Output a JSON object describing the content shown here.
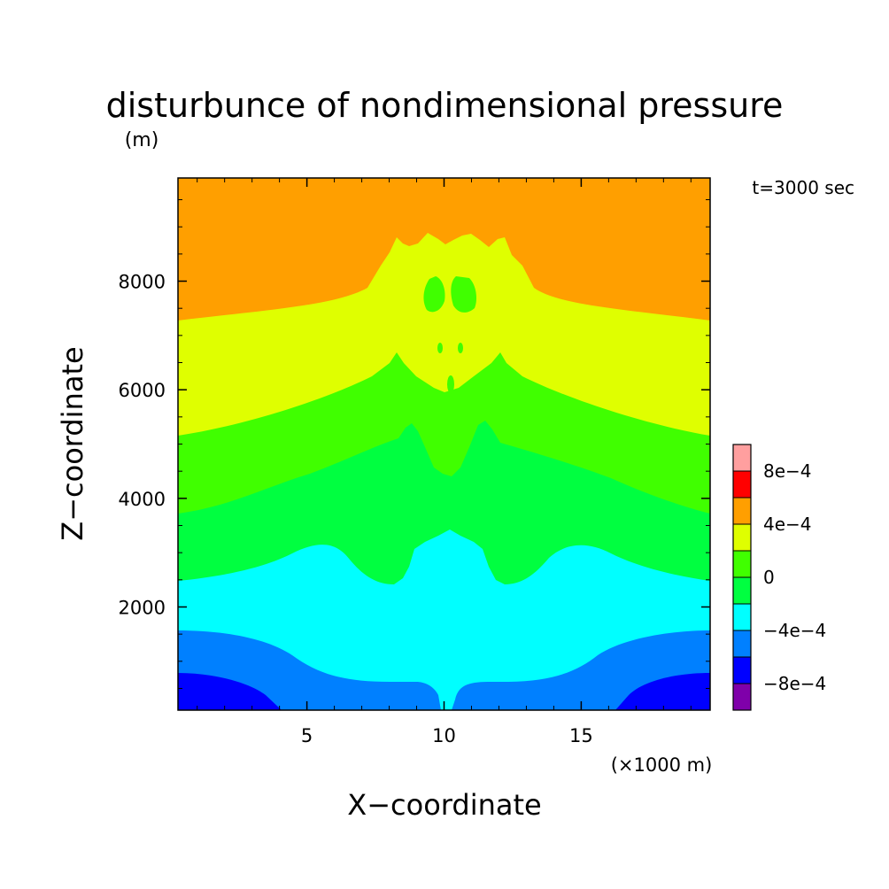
{
  "chart_data": {
    "type": "contour",
    "title": "disturbunce of nondimensional pressure",
    "time_label": "t=3000 sec",
    "xlabel": "X−coordinate",
    "ylabel": "Z−coordinate",
    "x_unit": "(×1000 m)",
    "y_unit": "(m)",
    "xlim": [
      0.3,
      19.7
    ],
    "ylim": [
      100,
      9900
    ],
    "x_ticks": [
      {
        "value": 5,
        "label": "5"
      },
      {
        "value": 10,
        "label": "10"
      },
      {
        "value": 15,
        "label": "15"
      }
    ],
    "y_ticks": [
      {
        "value": 2000,
        "label": "2000"
      },
      {
        "value": 4000,
        "label": "4000"
      },
      {
        "value": 6000,
        "label": "6000"
      },
      {
        "value": 8000,
        "label": "8000"
      }
    ],
    "levels": [
      {
        "range": "< -8e-4",
        "color": "#7f00aa"
      },
      {
        "range": "-8e-4 to -6e-4",
        "color": "#0000ff"
      },
      {
        "range": "-6e-4 to -4e-4",
        "color": "#0080ff"
      },
      {
        "range": "-4e-4 to -2e-4",
        "color": "#00ffff"
      },
      {
        "range": "-2e-4 to 0",
        "color": "#00ff40"
      },
      {
        "range": "0 to 2e-4",
        "color": "#40ff00"
      },
      {
        "range": "2e-4 to 4e-4",
        "color": "#dfff00"
      },
      {
        "range": "4e-4 to 6e-4",
        "color": "#ff9f00"
      },
      {
        "range": "6e-4 to 8e-4",
        "color": "#ff0000"
      },
      {
        "range": "> 8e-4",
        "color": "#ff9f9f"
      }
    ],
    "colorbar_labels": [
      {
        "value": "8e-4",
        "label": "8e−4"
      },
      {
        "value": "4e-4",
        "label": "4e−4"
      },
      {
        "value": "0",
        "label": "0"
      },
      {
        "value": "-4e-4",
        "label": "−4e−4"
      },
      {
        "value": "-8e-4",
        "label": "−8e−4"
      }
    ]
  }
}
